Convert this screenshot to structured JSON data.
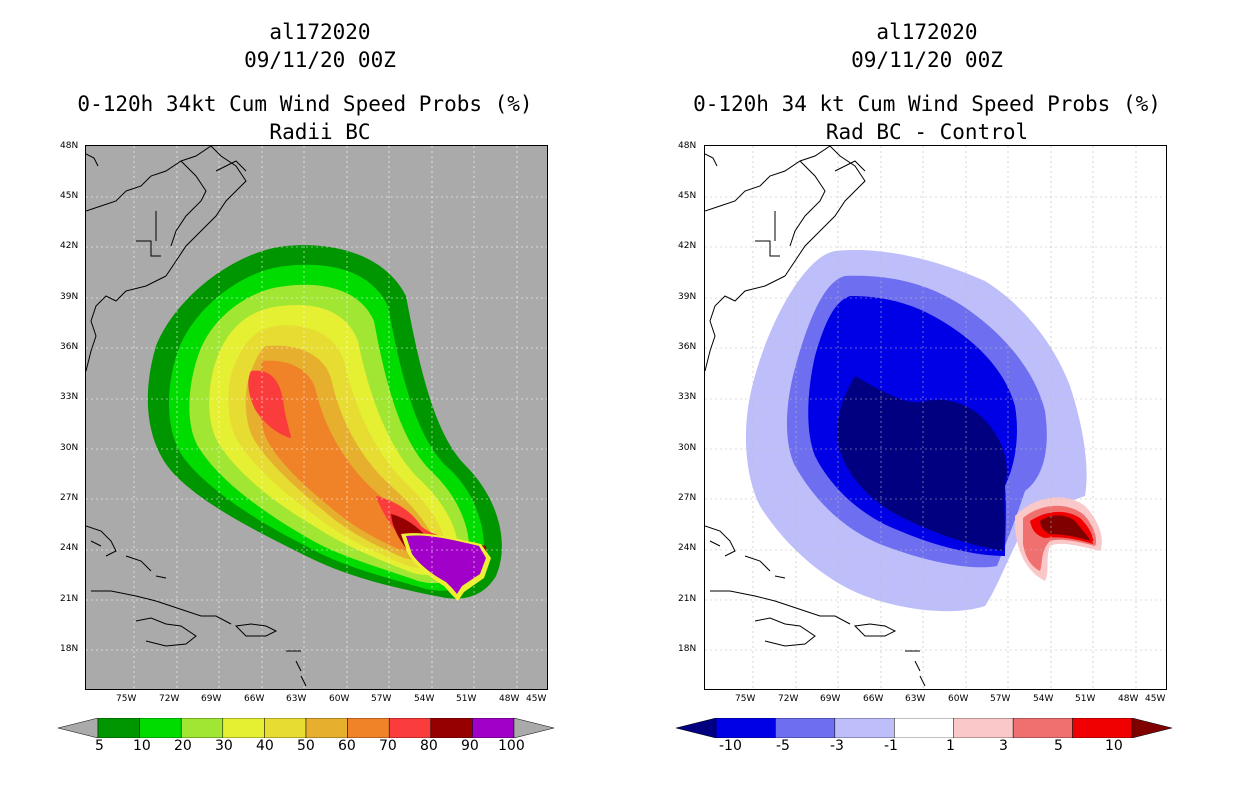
{
  "left": {
    "storm_id": "al172020",
    "datetime": "09/11/20 00Z",
    "title1": "0-120h 34kt Cum Wind Speed Probs (%)",
    "title2": "Radii BC",
    "lat_labels": [
      "48N",
      "45N",
      "42N",
      "39N",
      "36N",
      "33N",
      "30N",
      "27N",
      "24N",
      "21N",
      "18N"
    ],
    "lon_labels": [
      "75W",
      "72W",
      "69W",
      "66W",
      "63W",
      "60W",
      "57W",
      "54W",
      "51W",
      "48W",
      "45W"
    ],
    "colorbar": {
      "labels": [
        "5",
        "10",
        "20",
        "30",
        "40",
        "50",
        "60",
        "70",
        "80",
        "90",
        "100"
      ],
      "colors": [
        "#009600",
        "#00dc00",
        "#a0e632",
        "#e6f032",
        "#e6dc32",
        "#e6af2d",
        "#f08228",
        "#fa3c3c",
        "#960000",
        "#a000c8"
      ],
      "under": "#aaaaaa",
      "over": "#aaaaaa"
    },
    "background_color": "#aaaaaa"
  },
  "right": {
    "storm_id": "al172020",
    "datetime": "09/11/20 00Z",
    "title1": "0-120h 34 kt Cum Wind Speed Probs (%)",
    "title2": "Rad BC - Control",
    "lat_labels": [
      "48N",
      "45N",
      "42N",
      "39N",
      "36N",
      "33N",
      "30N",
      "27N",
      "24N",
      "21N",
      "18N"
    ],
    "lon_labels": [
      "75W",
      "72W",
      "69W",
      "66W",
      "63W",
      "60W",
      "57W",
      "54W",
      "51W",
      "48W",
      "45W"
    ],
    "colorbar": {
      "labels": [
        "-10",
        "-5",
        "-3",
        "-1",
        "1",
        "3",
        "5",
        "10"
      ],
      "colors": [
        "#0000e6",
        "#6e6ef0",
        "#bebefa",
        "#ffffff",
        "#fac8c8",
        "#f07070",
        "#f00000"
      ],
      "under": "#000080",
      "over": "#800000"
    },
    "background_color": "#ffffff"
  }
}
